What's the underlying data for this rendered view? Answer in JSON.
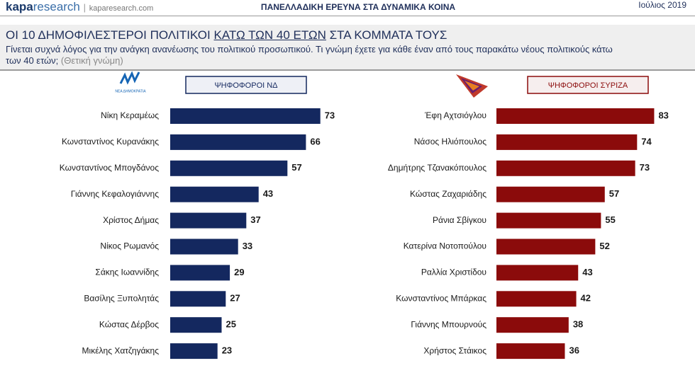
{
  "header": {
    "brand_bold": "kapa",
    "brand_light": "research",
    "website": "kaparesearch.com",
    "survey": "ΠΑΝΕΛΛΑΔΙΚΗ ΕΡΕΥΝΑ ΣΤΑ ΔΥΝΑΜΙΚΑ ΚΟΙΝΑ",
    "date": "Ιούλιος 2019"
  },
  "title": {
    "before": "ΟΙ 10 ΔΗΜΟΦΙΛΕΣΤΕΡΟΙ ΠΟΛΙΤΙΚΟΙ",
    "underlined": "ΚΑΤΩ ΤΩΝ 40 ΕΤΩΝ",
    "after": "ΣΤΑ ΚΟΜΜΑΤΑ ΤΟΥΣ"
  },
  "question": "Γίνεται συχνά λόγος για την ανάγκη ανανέωσης του πολιτικού προσωπικού. Τι γνώμη έχετε για κάθε έναν από τους παρακάτω νέους πολιτικούς κάτω των 40 ετών;",
  "note": "(Θετική γνώμη)",
  "nd_logo_text": "ΝΕΑ ΔΗΜΟΚΡΑΤΙΑ",
  "chart_data": [
    {
      "type": "bar",
      "orientation": "horizontal",
      "title": "ΨΗΦΟΦΟΡΟΙ ΝΔ",
      "color": "#14285f",
      "xlim": [
        0,
        100
      ],
      "categories": [
        "Νίκη Κεραμέως",
        "Κωνσταντίνος Κυρανάκης",
        "Κωνσταντίνος Μπογδάνος",
        "Γιάννης Κεφαλογιάννης",
        "Χρίστος Δήμας",
        "Νίκος Ρωμανός",
        "Σάκης Ιωαννίδης",
        "Βασίλης Ξυπολητάς",
        "Κώστας Δέρβος",
        "Μικέλης Χατζηγάκης"
      ],
      "values": [
        73,
        66,
        57,
        43,
        37,
        33,
        29,
        27,
        25,
        23
      ]
    },
    {
      "type": "bar",
      "orientation": "horizontal",
      "title": "ΨΗΦΟΦΟΡΟΙ ΣΥΡΙΖΑ",
      "color": "#8b0b0b",
      "xlim": [
        0,
        100
      ],
      "categories": [
        "Έφη Αχτσιόγλου",
        "Νάσος Ηλιόπουλος",
        "Δημήτρης Τζανακόπουλος",
        "Κώστας Ζαχαριάδης",
        "Ράνια Σβίγκου",
        "Κατερίνα Νοτοπούλου",
        "Ραλλία Χριστίδου",
        "Κωνσταντίνος Μπάρκας",
        "Γιάννης Μπουρνούς",
        "Χρήστος Στάικος"
      ],
      "values": [
        83,
        74,
        73,
        57,
        55,
        52,
        43,
        42,
        38,
        36
      ]
    }
  ]
}
